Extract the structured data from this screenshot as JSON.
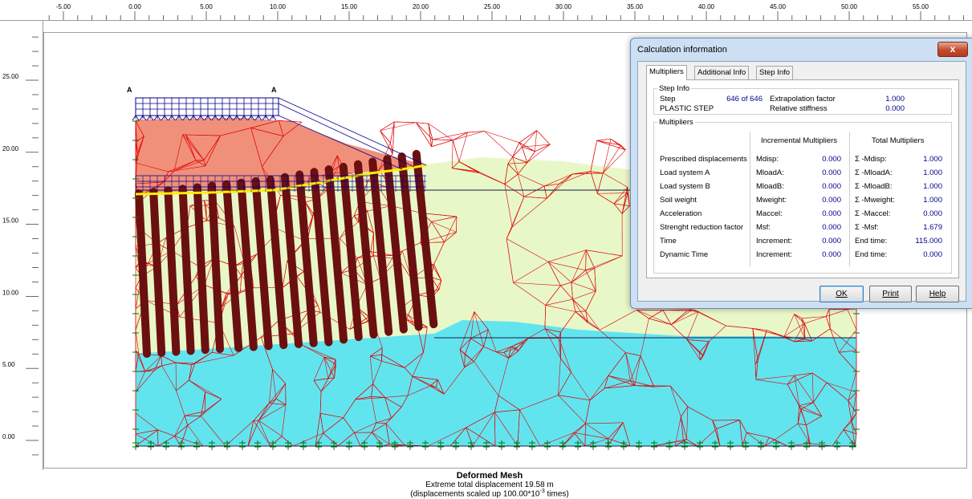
{
  "ruler": {
    "x_ticks": [
      "-5.00",
      "0.00",
      "5.00",
      "10.00",
      "15.00",
      "20.00",
      "25.00",
      "30.00",
      "35.00",
      "40.00",
      "45.00",
      "50.00",
      "55.00"
    ],
    "y_ticks": [
      "25.00",
      "20.00",
      "15.00",
      "10.00",
      "5.00",
      "0.00"
    ]
  },
  "plot": {
    "point_labels": [
      "A",
      "A"
    ],
    "caption_title": "Deformed Mesh",
    "caption_line1": "Extreme total displacement 19.58 m",
    "caption_line2_pre": "(displacements scaled up 100.00*10",
    "caption_line2_sup": "-3",
    "caption_line2_post": " times)",
    "colors": {
      "clay_layer": "#e8f7c8",
      "sand_layer": "#62e4ef",
      "embankment": "#f1907a",
      "mesh_lines": "#e00000",
      "plates": "#6b1010",
      "interface_line": "#ffee00",
      "load_system": "#00008b",
      "fixities": "#007a00"
    }
  },
  "dialog": {
    "title": "Calculation information",
    "close_label": "x",
    "tabs": [
      "Multipliers",
      "Additional Info",
      "Step Info"
    ],
    "step_info": {
      "legend": "Step Info",
      "step_label": "Step",
      "step_value": "646 of 646",
      "phase_label": "PLASTIC STEP",
      "extrap_label": "Extrapolation factor",
      "extrap_value": "1.000",
      "stiff_label": "Relative stiffness",
      "stiff_value": "0.000"
    },
    "multipliers": {
      "legend": "Multipliers",
      "inc_header": "Incremental Multipliers",
      "tot_header": "Total Multipliers",
      "rows": [
        {
          "label": "Prescribed displacements",
          "inc_name": "Mdisp:",
          "inc_val": "0.000",
          "tot_name": "Σ -Mdisp:",
          "tot_val": "1.000"
        },
        {
          "label": "Load system A",
          "inc_name": "MloadA:",
          "inc_val": "0.000",
          "tot_name": "Σ -MloadA:",
          "tot_val": "1.000"
        },
        {
          "label": "Load system B",
          "inc_name": "MloadB:",
          "inc_val": "0.000",
          "tot_name": "Σ -MloadB:",
          "tot_val": "1.000"
        },
        {
          "label": "Soil weight",
          "inc_name": "Mweight:",
          "inc_val": "0.000",
          "tot_name": "Σ -Mweight:",
          "tot_val": "1.000"
        },
        {
          "label": "Acceleration",
          "inc_name": "Maccel:",
          "inc_val": "0.000",
          "tot_name": "Σ -Maccel:",
          "tot_val": "0.000"
        },
        {
          "label": "Strenght reduction factor",
          "inc_name": "Msf:",
          "inc_val": "0.000",
          "tot_name": "Σ -Msf:",
          "tot_val": "1.679"
        },
        {
          "label": "Time",
          "inc_name": "Increment:",
          "inc_val": "0.000",
          "tot_name": "End time:",
          "tot_val": "115.000"
        },
        {
          "label": "Dynamic Time",
          "inc_name": "Increment:",
          "inc_val": "0.000",
          "tot_name": "End time:",
          "tot_val": "0.000"
        }
      ]
    },
    "buttons": {
      "ok": "OK",
      "print": "Print",
      "help": "Help"
    }
  }
}
